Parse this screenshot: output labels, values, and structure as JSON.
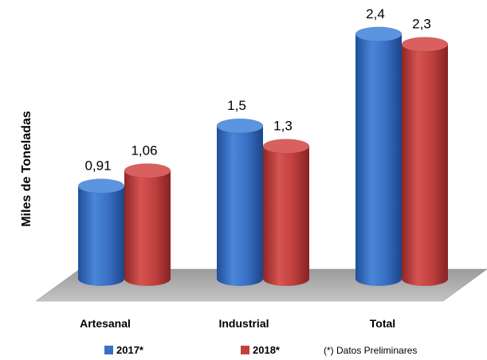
{
  "chart_data": {
    "type": "bar",
    "style": "3d-cylinder",
    "categories": [
      "Artesanal",
      "Industrial",
      "Total"
    ],
    "series": [
      {
        "name": "2017*",
        "values": [
          0.91,
          1.5,
          2.4
        ],
        "labels": [
          "0,91",
          "1,5",
          "2,4"
        ],
        "color": "#3a6fc4"
      },
      {
        "name": "2018*",
        "values": [
          1.06,
          1.3,
          2.3
        ],
        "labels": [
          "1,06",
          "1,3",
          "2,3"
        ],
        "color": "#c0403f"
      }
    ],
    "ylabel": "Miles de Toneladas",
    "ylim": [
      0,
      2.6
    ],
    "grid": false,
    "legend_position": "bottom",
    "note": "(*) Datos Preliminares"
  }
}
